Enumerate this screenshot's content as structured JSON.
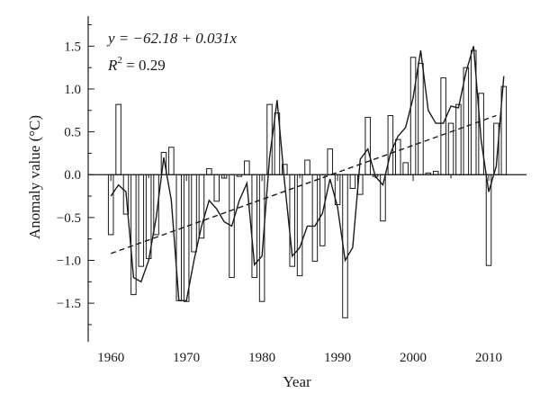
{
  "chart_data": {
    "type": "bar",
    "xlabel": "Year",
    "ylabel": "Anomaly value (°C)",
    "xlim": [
      1957,
      2015
    ],
    "ylim": [
      -1.95,
      1.85
    ],
    "x_ticks": [
      1960,
      1970,
      1980,
      1990,
      2000,
      2010
    ],
    "x_tick_labels": [
      "1960",
      "1970",
      "1980",
      "1990",
      "2000",
      "2010"
    ],
    "y_ticks": [
      -1.5,
      -1.0,
      -0.5,
      0.0,
      0.5,
      1.0,
      1.5
    ],
    "y_tick_labels": [
      "−1.5",
      "−1.0",
      "−0.5",
      "0.0",
      "0.5",
      "1.0",
      "1.5"
    ],
    "annotation": {
      "equation": "y = −62.18 + 0.031x",
      "r2_label": "R",
      "r2_exp": "2",
      "r2_value": " = 0.29"
    },
    "x": [
      1960,
      1961,
      1962,
      1963,
      1964,
      1965,
      1966,
      1967,
      1968,
      1969,
      1970,
      1971,
      1972,
      1973,
      1974,
      1975,
      1976,
      1977,
      1978,
      1979,
      1980,
      1981,
      1982,
      1983,
      1984,
      1985,
      1986,
      1987,
      1988,
      1989,
      1990,
      1991,
      1992,
      1993,
      1994,
      1995,
      1996,
      1997,
      1998,
      1999,
      2000,
      2001,
      2002,
      2003,
      2004,
      2005,
      2006,
      2007,
      2008,
      2009,
      2010,
      2011,
      2012
    ],
    "series": [
      {
        "type": "bar",
        "values": [
          -0.7,
          0.82,
          -0.46,
          -1.4,
          -1.07,
          -0.98,
          -0.7,
          0.26,
          0.32,
          -1.47,
          -1.48,
          -0.9,
          -0.74,
          0.07,
          -0.31,
          -0.04,
          -1.2,
          -0.02,
          0.16,
          -1.2,
          -1.48,
          0.82,
          0.72,
          0.12,
          -1.07,
          -1.18,
          0.17,
          -1.01,
          -0.83,
          0.3,
          -0.35,
          -1.67,
          -0.16,
          -0.23,
          0.67,
          -0.02,
          -0.54,
          0.69,
          0.41,
          0.14,
          1.37,
          1.3,
          0.02,
          0.04,
          1.13,
          0.6,
          0.82,
          1.25,
          1.45,
          0.95,
          -1.06,
          0.6,
          1.03
        ]
      },
      {
        "type": "line",
        "values": [
          -0.25,
          -0.12,
          -0.2,
          -1.2,
          -1.25,
          -1.0,
          -0.5,
          0.2,
          -0.3,
          -1.47,
          -1.47,
          -1.0,
          -0.6,
          -0.3,
          -0.4,
          -0.55,
          -0.6,
          -0.3,
          -0.1,
          -1.05,
          -0.95,
          0.2,
          0.87,
          -0.1,
          -0.95,
          -0.85,
          -0.6,
          -0.6,
          -0.45,
          -0.05,
          -0.38,
          -1.0,
          -0.85,
          0.18,
          0.3,
          -0.02,
          -0.12,
          0.25,
          0.45,
          0.55,
          0.9,
          1.45,
          0.75,
          0.6,
          0.6,
          0.8,
          0.78,
          1.2,
          1.5,
          0.4,
          -0.2,
          0.1,
          1.15
        ]
      },
      {
        "type": "trend",
        "x": [
          1960,
          2011
        ],
        "values": [
          -0.92,
          0.69
        ]
      }
    ]
  }
}
